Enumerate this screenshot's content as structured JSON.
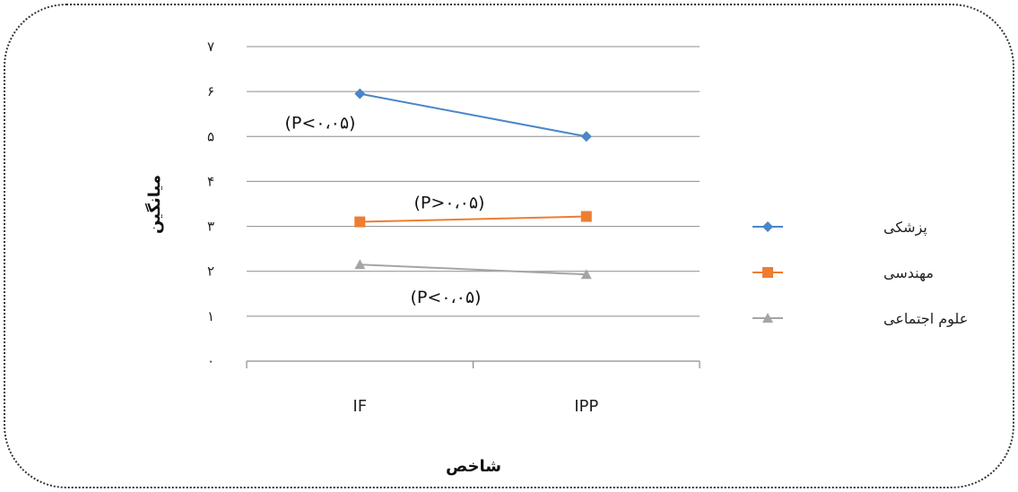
{
  "chart_data": {
    "type": "line",
    "categories": [
      "IF",
      "IPP"
    ],
    "y_ticks": [
      "۰",
      "۱",
      "۲",
      "۳",
      "۴",
      "۵",
      "۶",
      "۷"
    ],
    "ylim": [
      0,
      7
    ],
    "xlabel": "شاخص",
    "ylabel": "میانگین",
    "grid": true,
    "legend_position": "right",
    "series": [
      {
        "name": "پزشکی",
        "values": [
          5.95,
          5.0
        ],
        "color": "#4a86c8",
        "marker": "diamond",
        "annotation": "(P<۰،۰۵)"
      },
      {
        "name": "مهندسی",
        "values": [
          3.1,
          3.22
        ],
        "color": "#ed7d31",
        "marker": "square",
        "annotation": "(P>۰،۰۵)"
      },
      {
        "name": "علوم اجتماعی",
        "values": [
          2.15,
          1.93
        ],
        "color": "#a5a5a5",
        "marker": "triangle",
        "annotation": "(P<۰،۰۵)"
      }
    ]
  }
}
